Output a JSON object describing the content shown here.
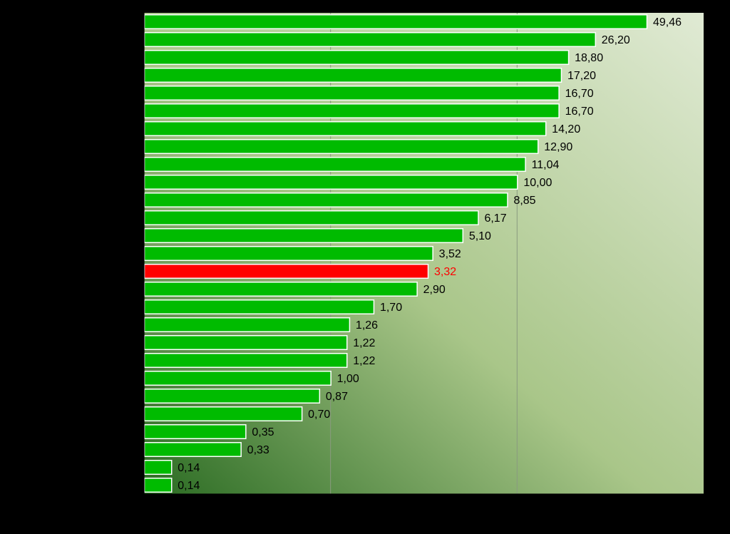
{
  "chart_data": {
    "type": "bar",
    "orientation": "horizontal",
    "scale": "log",
    "xlim": [
      0.1,
      100
    ],
    "grid": "vertical-decades",
    "colors": {
      "background": "#000000",
      "bar": "#00bb00",
      "highlight": "#ff0000",
      "bar_border": "#ffffff",
      "label": "#000000",
      "highlight_label": "#ff0000",
      "plot_gradient": [
        "#2a6b22",
        "#a9c689",
        "#e0ead4"
      ]
    },
    "values": [
      49.46,
      26.2,
      18.8,
      17.2,
      16.7,
      16.7,
      14.2,
      12.9,
      11.04,
      10.0,
      8.85,
      6.17,
      5.1,
      3.52,
      3.32,
      2.9,
      1.7,
      1.26,
      1.22,
      1.22,
      1.0,
      0.87,
      0.7,
      0.35,
      0.33,
      0.14,
      0.14
    ],
    "value_labels": [
      "49,46",
      "26,20",
      "18,80",
      "17,20",
      "16,70",
      "16,70",
      "14,20",
      "12,90",
      "11,04",
      "10,00",
      "8,85",
      "6,17",
      "5,10",
      "3,52",
      "3,32",
      "2,90",
      "1,70",
      "1,26",
      "1,22",
      "1,22",
      "1,00",
      "0,87",
      "0,70",
      "0,35",
      "0,33",
      "0,14",
      "0,14"
    ],
    "highlight_index": 14
  }
}
